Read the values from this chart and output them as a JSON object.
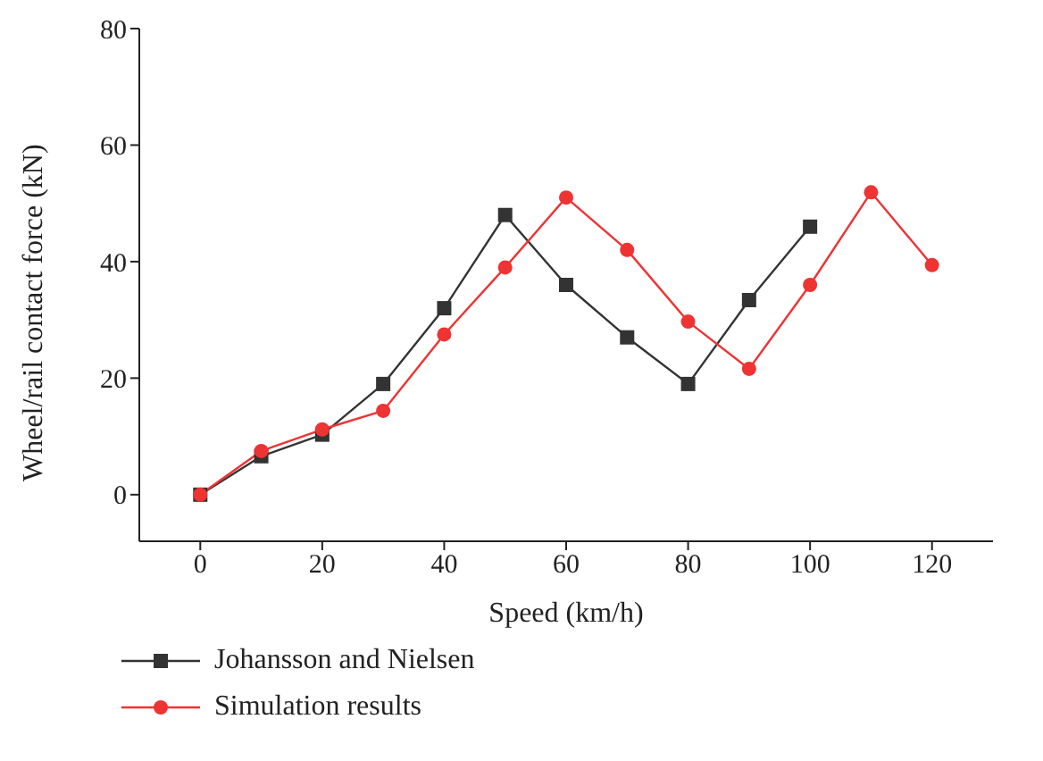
{
  "chart_data": {
    "type": "line",
    "xlabel": "Speed (km/h)",
    "ylabel": "Wheel/rail contact force (kN)",
    "xlim": [
      -10,
      130
    ],
    "xticks": [
      0,
      20,
      40,
      60,
      80,
      100,
      120
    ],
    "ylim": [
      -8,
      80
    ],
    "yticks": [
      0,
      20,
      40,
      60,
      80
    ],
    "grid": false,
    "legend": "bottom left",
    "series": [
      {
        "name": "Johansson and Nielsen",
        "color": "#333333",
        "marker": "square",
        "x": [
          0,
          10,
          20,
          30,
          40,
          50,
          60,
          70,
          80,
          90,
          100
        ],
        "values": [
          0,
          6.6,
          10.3,
          19,
          32,
          48,
          36,
          27,
          19,
          33.4,
          46
        ]
      },
      {
        "name": "Simulation results",
        "color": "#ee3333",
        "marker": "circle",
        "x": [
          0,
          10,
          20,
          30,
          40,
          50,
          60,
          70,
          80,
          90,
          100,
          110,
          120
        ],
        "values": [
          0,
          7.5,
          11.2,
          14.4,
          27.5,
          39,
          51,
          42,
          29.7,
          21.6,
          36,
          51.9,
          39.4
        ]
      }
    ]
  }
}
